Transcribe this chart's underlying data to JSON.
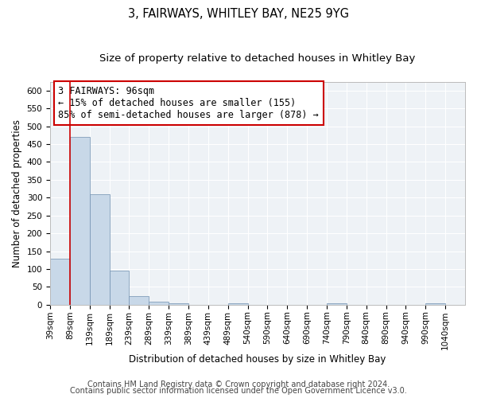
{
  "title": "3, FAIRWAYS, WHITLEY BAY, NE25 9YG",
  "subtitle": "Size of property relative to detached houses in Whitley Bay",
  "xlabel": "Distribution of detached houses by size in Whitley Bay",
  "ylabel": "Number of detached properties",
  "bar_color": "#c8d8e8",
  "bar_edge_color": "#7090b0",
  "bins": [
    "39sqm",
    "89sqm",
    "139sqm",
    "189sqm",
    "239sqm",
    "289sqm",
    "339sqm",
    "389sqm",
    "439sqm",
    "489sqm",
    "540sqm",
    "590sqm",
    "640sqm",
    "690sqm",
    "740sqm",
    "790sqm",
    "840sqm",
    "890sqm",
    "940sqm",
    "990sqm",
    "1040sqm"
  ],
  "values": [
    130,
    470,
    310,
    96,
    25,
    9,
    3,
    0,
    0,
    4,
    0,
    0,
    0,
    0,
    4,
    0,
    0,
    0,
    0,
    4,
    0
  ],
  "property_line_x": 1,
  "annotation_line1": "3 FAIRWAYS: 96sqm",
  "annotation_line2": "← 15% of detached houses are smaller (155)",
  "annotation_line3": "85% of semi-detached houses are larger (878) →",
  "annotation_box_color": "white",
  "annotation_border_color": "#cc0000",
  "vline_color": "#cc0000",
  "ylim": [
    0,
    625
  ],
  "yticks": [
    0,
    50,
    100,
    150,
    200,
    250,
    300,
    350,
    400,
    450,
    500,
    550,
    600
  ],
  "footer1": "Contains HM Land Registry data © Crown copyright and database right 2024.",
  "footer2": "Contains public sector information licensed under the Open Government Licence v3.0.",
  "bg_color": "#eef2f6",
  "grid_color": "#ffffff",
  "title_fontsize": 10.5,
  "subtitle_fontsize": 9.5,
  "axis_label_fontsize": 8.5,
  "tick_fontsize": 7.5,
  "annotation_fontsize": 8.5,
  "footer_fontsize": 7
}
